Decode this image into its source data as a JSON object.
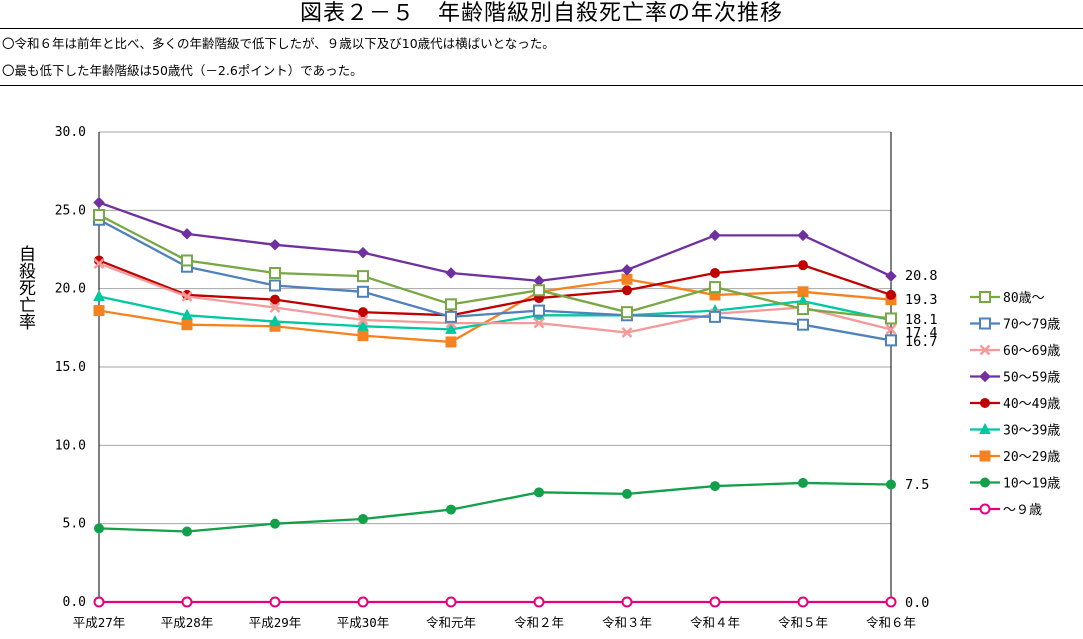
{
  "header": {
    "title": "図表２－５　年齢階級別自殺死亡率の年次推移",
    "note1": "〇令和６年は前年と比べ、多くの年齢階級で低下したが、９歳以下及び10歳代は横ばいとなった。",
    "note2": "〇最も低下した年齢階級は50歳代（－2.6ポイント）であった。"
  },
  "chart_data": {
    "type": "line",
    "ylabel": "自殺死亡率",
    "ylim": [
      0,
      30
    ],
    "yticks": [
      "0.0",
      "5.0",
      "10.0",
      "15.0",
      "20.0",
      "25.0",
      "30.0"
    ],
    "grid": true,
    "legend_position": "right",
    "categories": [
      "平成27年",
      "平成28年",
      "平成29年",
      "平成30年",
      "令和元年",
      "令和２年",
      "令和３年",
      "令和４年",
      "令和５年",
      "令和６年"
    ],
    "series": [
      {
        "name": "80歳～",
        "color": "#77a843",
        "marker": "square-open",
        "values": [
          24.7,
          21.8,
          21.0,
          20.8,
          19.0,
          19.9,
          18.5,
          20.1,
          18.7,
          18.1
        ]
      },
      {
        "name": "70～79歳",
        "color": "#4f81bd",
        "marker": "square-open",
        "values": [
          24.4,
          21.4,
          20.2,
          19.8,
          18.2,
          18.6,
          18.3,
          18.2,
          17.7,
          16.7
        ]
      },
      {
        "name": "60～69歳",
        "color": "#f49a9a",
        "marker": "x",
        "values": [
          21.6,
          19.5,
          18.8,
          18.0,
          17.8,
          17.8,
          17.2,
          18.4,
          18.8,
          17.4
        ]
      },
      {
        "name": "50～59歳",
        "color": "#7030a0",
        "marker": "diamond",
        "values": [
          25.5,
          23.5,
          22.8,
          22.3,
          21.0,
          20.5,
          21.2,
          23.4,
          23.4,
          20.8
        ]
      },
      {
        "name": "40～49歳",
        "color": "#c00000",
        "marker": "circle",
        "values": [
          21.8,
          19.6,
          19.3,
          18.5,
          18.3,
          19.4,
          19.9,
          21.0,
          21.5,
          19.6
        ]
      },
      {
        "name": "30～39歳",
        "color": "#00c8a0",
        "marker": "triangle",
        "values": [
          19.5,
          18.3,
          17.9,
          17.6,
          17.4,
          18.3,
          18.3,
          18.6,
          19.2,
          18.0
        ]
      },
      {
        "name": "20～29歳",
        "color": "#f58220",
        "marker": "square",
        "values": [
          18.6,
          17.7,
          17.6,
          17.0,
          16.6,
          19.8,
          20.6,
          19.6,
          19.8,
          19.3
        ]
      },
      {
        "name": "10～19歳",
        "color": "#12a04a",
        "marker": "circle",
        "values": [
          4.7,
          4.5,
          5.0,
          5.3,
          5.9,
          7.0,
          6.9,
          7.4,
          7.6,
          7.5
        ]
      },
      {
        "name": "～９歳",
        "color": "#e6007e",
        "marker": "circle-open",
        "values": [
          0.0,
          0.0,
          0.0,
          0.0,
          0.0,
          0.0,
          0.0,
          0.0,
          0.0,
          0.0
        ]
      }
    ],
    "end_labels": [
      {
        "text": "20.8",
        "value": 20.8
      },
      {
        "text": "19.3",
        "value": 19.3
      },
      {
        "text": "18.1",
        "value": 18.1
      },
      {
        "text": "17.4",
        "value": 17.4
      },
      {
        "text": "16.7",
        "value": 16.7
      },
      {
        "text": "7.5",
        "value": 7.5
      },
      {
        "text": "0.0",
        "value": 0.0
      }
    ]
  }
}
